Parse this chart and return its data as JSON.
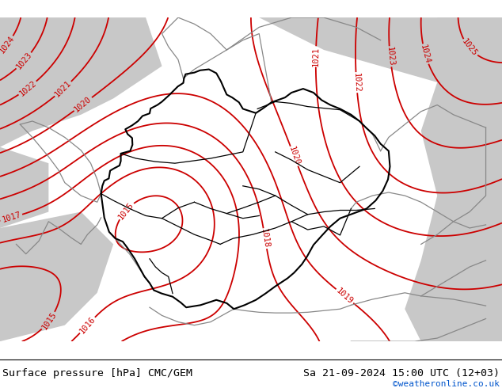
{
  "title_left": "Surface pressure [hPa] CMC/GEM",
  "title_right": "Sa 21-09-2024 15:00 UTC (12+03)",
  "credit": "©weatheronline.co.uk",
  "bg_color_green": "#c8e896",
  "bg_color_gray": "#c8c8c8",
  "bg_color_white": "#f0f0f0",
  "contour_color": "#cc0000",
  "border_color_de": "#000000",
  "border_color_neighbor": "#888888",
  "label_color": "#cc0000",
  "font_size_title": 9.5,
  "font_size_label": 7.5,
  "font_size_credit": 8,
  "pressure_base": 1019.0,
  "xlim": [
    3.0,
    18.5
  ],
  "ylim": [
    46.5,
    56.5
  ],
  "figsize": [
    6.34,
    4.9
  ],
  "dpi": 100
}
